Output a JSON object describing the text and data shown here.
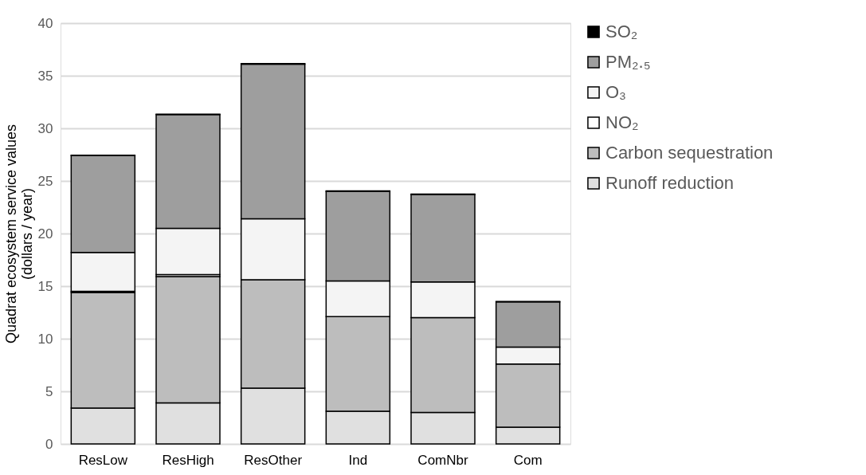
{
  "chart_data": {
    "type": "bar",
    "stacked": true,
    "ylabel": "Quadrat ecosystem service values\n(dollars / year)",
    "categories": [
      "ResLow",
      "ResHigh",
      "ResOther",
      "Ind",
      "ComNbr",
      "Com"
    ],
    "series": [
      {
        "name": "Runoff reduction",
        "color": "#e0e0e0",
        "values": [
          3.4,
          3.9,
          5.3,
          3.1,
          3.0,
          1.6
        ]
      },
      {
        "name": "Carbon sequestration",
        "color": "#bdbdbd",
        "values": [
          11.0,
          12.0,
          10.3,
          9.0,
          9.0,
          6.0
        ]
      },
      {
        "name": "NO₂",
        "color": "#ffffff",
        "values": [
          0.1,
          0.2,
          null,
          null,
          null,
          null
        ]
      },
      {
        "name": "O₃",
        "color": "#f4f4f4",
        "values": [
          3.7,
          4.4,
          5.8,
          3.4,
          3.4,
          1.6
        ]
      },
      {
        "name": "PM₂.₅",
        "color": "#9e9e9e",
        "values": [
          9.2,
          10.8,
          14.7,
          8.5,
          8.3,
          4.3
        ]
      },
      {
        "name": "SO₂",
        "color": "#000000",
        "values": [
          0.05,
          0.05,
          0.05,
          0.05,
          0.05,
          0.05
        ]
      }
    ],
    "ylim": [
      0,
      40
    ],
    "yticks": [
      0,
      5,
      10,
      15,
      20,
      25,
      30,
      35,
      40
    ],
    "grid": "y",
    "legend": "right"
  }
}
